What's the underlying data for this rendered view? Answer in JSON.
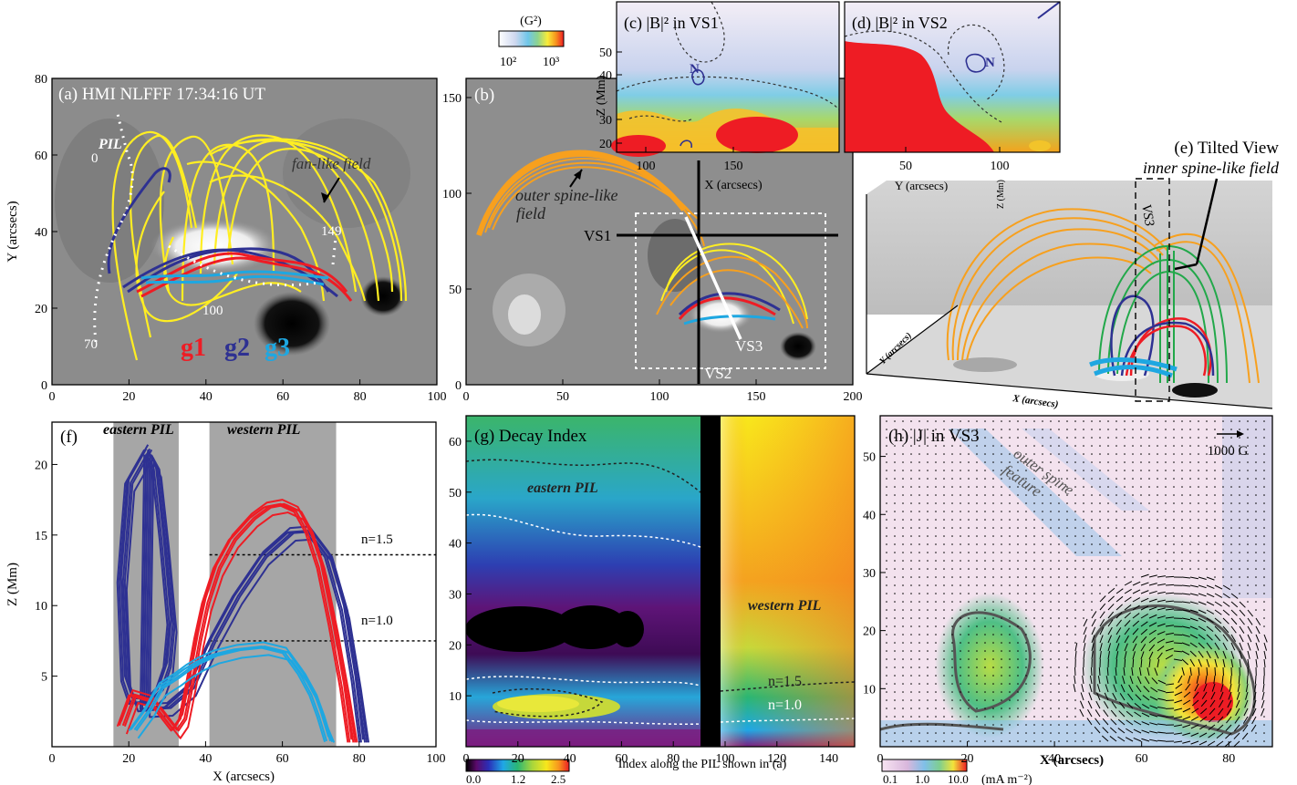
{
  "colors": {
    "yellow": "#ffee22",
    "orange": "#f7a01e",
    "red": "#ee1c24",
    "navy": "#2e3192",
    "cyan": "#1ea7e1",
    "green": "#22a84a",
    "black": "#000000",
    "white": "#ffffff"
  },
  "panel_a": {
    "title": "(a) HMI NLFFF 17:34:16 UT",
    "ylabel": "Y (arcsecs)",
    "annotations": {
      "fan": "fan-like field",
      "pil": "PIL",
      "m0": "0",
      "m70": "70",
      "m100": "100",
      "m149": "149"
    },
    "groups": [
      "g1",
      "g2",
      "g3"
    ]
  },
  "panel_b": {
    "title": "(b)",
    "annotations": {
      "outer": "outer spine-like",
      "field": "field",
      "vs1": "VS1",
      "vs2": "VS2",
      "vs3": "VS3"
    }
  },
  "colorbar_top": {
    "unit": "(G²)",
    "tick1": "10²",
    "tick2": "10³"
  },
  "panel_c": {
    "title": "(c)  |B|² in VS1",
    "ylabel": "Z (Mm)",
    "xlabel": "X (arcsecs)",
    "marker": "N"
  },
  "panel_d": {
    "title": "(d)  |B|² in VS2",
    "marker": "N"
  },
  "panel_e": {
    "title": "(e) Tilted View",
    "subtitle": "inner spine-like field",
    "ylabel": "Y (arcsecs)",
    "zlabel": "Z (Mm)",
    "vs3": "VS3",
    "xlabel3d": "X (arcsecs)",
    "ylabel3d": "Y (arcsecs)"
  },
  "panel_f": {
    "title": "(f)",
    "eastern": "eastern PIL",
    "western": "western PIL",
    "n15": "n=1.5",
    "n10": "n=1.0",
    "ylabel": "Z (Mm)",
    "xlabel": "X (arcsecs)"
  },
  "panel_g": {
    "title": "(g) Decay Index",
    "eastern": "eastern PIL",
    "western": "western PIL",
    "n15": "n=1.5",
    "n10": "n=1.0",
    "xlabel": "Index along the PIL shown in (a)"
  },
  "colorbar_g": {
    "tick1": "0.0",
    "tick2": "1.2",
    "tick3": "2.5"
  },
  "panel_h": {
    "title": "(h) |J| in VS3",
    "feature1": "outer spine",
    "feature2": "feature",
    "arrow_label": "1000 G",
    "xlabel": "X (arcsecs)"
  },
  "colorbar_h": {
    "tick1": "0.1",
    "tick2": "1.0",
    "tick3": "10.0",
    "unit": "(mA m⁻²)"
  },
  "chart_data": [
    {
      "type": "heatmap",
      "panel": "a",
      "title": "(a) HMI NLFFF 17:34:16 UT",
      "ylabel": "Y (arcsecs)",
      "xlim": [
        0,
        100
      ],
      "ylim": [
        0,
        80
      ],
      "xticks": [
        0,
        20,
        40,
        60,
        80,
        100
      ],
      "yticks": [
        0,
        20,
        40,
        60,
        80
      ],
      "series": [
        {
          "name": "g1",
          "color": "red"
        },
        {
          "name": "g2",
          "color": "navy"
        },
        {
          "name": "g3",
          "color": "cyan"
        }
      ]
    },
    {
      "type": "heatmap",
      "panel": "b",
      "title": "(b)",
      "xlim": [
        0,
        200
      ],
      "ylim": [
        0,
        160
      ],
      "xticks": [
        0,
        50,
        100,
        150,
        200
      ],
      "yticks": [
        0,
        50,
        100,
        150
      ]
    },
    {
      "type": "heatmap",
      "panel": "c",
      "title": "|B|² in VS1",
      "ylabel": "Z (Mm)",
      "xlabel": "X (arcsecs)",
      "xticks": [
        100,
        150
      ],
      "yticks": [
        20,
        30,
        40,
        50
      ]
    },
    {
      "type": "heatmap",
      "panel": "d",
      "title": "|B|² in VS2",
      "xticks": [
        50,
        100
      ]
    },
    {
      "type": "line",
      "panel": "f",
      "ylabel": "Z (Mm)",
      "xlabel": "X (arcsecs)",
      "xlim": [
        0,
        100
      ],
      "ylim": [
        0,
        23
      ],
      "xticks": [
        0,
        20,
        40,
        60,
        80,
        100
      ],
      "yticks": [
        5,
        10,
        15,
        20
      ],
      "shaded_regions": [
        {
          "name": "eastern PIL",
          "x": [
            16,
            33
          ]
        },
        {
          "name": "western PIL",
          "x": [
            41,
            74
          ]
        }
      ],
      "thresholds": [
        {
          "label": "n=1.5",
          "y": 13.6,
          "x_start": 41
        },
        {
          "label": "n=1.0",
          "y": 7.5,
          "x_start": 41
        }
      ],
      "series": [
        {
          "name": "g2",
          "color": "navy",
          "x": [
            25,
            20,
            18,
            19,
            21,
            25,
            28,
            30,
            31,
            29,
            27,
            25,
            24,
            30,
            36,
            42,
            48,
            55,
            62,
            67,
            72,
            76,
            79,
            81
          ],
          "y": [
            21.4,
            19,
            12,
            5,
            3.4,
            3.5,
            4.4,
            6,
            9,
            15,
            20,
            21,
            3,
            3.1,
            4.5,
            8,
            11,
            13.8,
            15.5,
            15.6,
            13.8,
            10,
            5,
            0.5
          ]
        },
        {
          "name": "g1",
          "color": "red",
          "x": [
            18,
            21,
            26,
            30,
            32,
            34,
            36,
            38,
            40,
            43,
            47,
            52,
            56,
            60,
            64,
            67,
            70,
            73,
            76,
            78
          ],
          "y": [
            1.8,
            4,
            3.6,
            2.2,
            1.5,
            2.3,
            5,
            8,
            10.5,
            13,
            15,
            16.5,
            17.3,
            17.5,
            17,
            15.5,
            13,
            9,
            4.5,
            0.5
          ]
        },
        {
          "name": "g3",
          "color": "cyan",
          "x": [
            21,
            25,
            28,
            32,
            35,
            38,
            42,
            48,
            55,
            61,
            65,
            68,
            70,
            72
          ],
          "y": [
            1.5,
            3,
            4.5,
            5.2,
            5.8,
            6.3,
            6.8,
            7.2,
            7.4,
            7,
            5.5,
            4,
            2.5,
            0.7
          ]
        }
      ]
    },
    {
      "type": "heatmap",
      "panel": "g",
      "title": "(g) Decay Index",
      "xlabel": "Index along the PIL shown in (a)",
      "xlim": [
        0,
        150
      ],
      "ylim": [
        0,
        65
      ],
      "xticks": [
        0,
        20,
        40,
        60,
        80,
        100,
        120,
        140
      ],
      "yticks": [
        10,
        20,
        30,
        40,
        50,
        60
      ],
      "colorbar": [
        0.0,
        1.2,
        2.5
      ]
    },
    {
      "type": "heatmap",
      "panel": "h",
      "title": "(h) |J| in VS3",
      "xlabel": "X (arcsecs)",
      "xlim": [
        0,
        90
      ],
      "ylim": [
        0,
        57
      ],
      "xticks": [
        0,
        20,
        40,
        60,
        80
      ],
      "yticks": [
        10,
        20,
        30,
        40,
        50
      ],
      "colorbar": [
        0.1,
        1.0,
        10.0
      ]
    }
  ]
}
